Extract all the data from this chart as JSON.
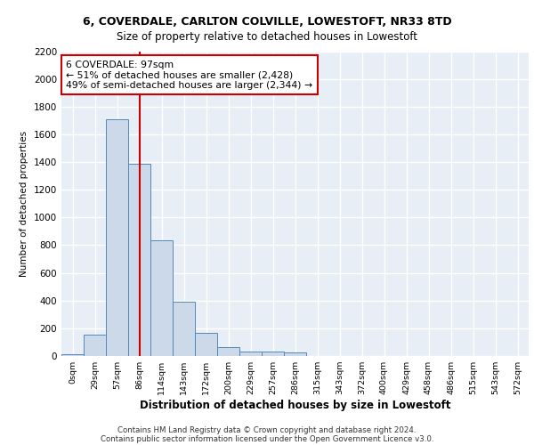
{
  "title1": "6, COVERDALE, CARLTON COLVILLE, LOWESTOFT, NR33 8TD",
  "title2": "Size of property relative to detached houses in Lowestoft",
  "xlabel": "Distribution of detached houses by size in Lowestoft",
  "ylabel": "Number of detached properties",
  "bin_labels": [
    "0sqm",
    "29sqm",
    "57sqm",
    "86sqm",
    "114sqm",
    "143sqm",
    "172sqm",
    "200sqm",
    "229sqm",
    "257sqm",
    "286sqm",
    "315sqm",
    "343sqm",
    "372sqm",
    "400sqm",
    "429sqm",
    "458sqm",
    "486sqm",
    "515sqm",
    "543sqm",
    "572sqm"
  ],
  "bar_values": [
    15,
    155,
    1710,
    1390,
    835,
    390,
    165,
    65,
    35,
    30,
    25,
    0,
    0,
    0,
    0,
    0,
    0,
    0,
    0,
    0,
    0
  ],
  "bar_color": "#ccd9e8",
  "bar_edge_color": "#5588bb",
  "vline_x": 3.0,
  "vline_color": "#cc0000",
  "annotation_text": "6 COVERDALE: 97sqm\n← 51% of detached houses are smaller (2,428)\n49% of semi-detached houses are larger (2,344) →",
  "annotation_box_color": "#ffffff",
  "annotation_box_edge": "#cc0000",
  "ylim": [
    0,
    2200
  ],
  "yticks": [
    0,
    200,
    400,
    600,
    800,
    1000,
    1200,
    1400,
    1600,
    1800,
    2000,
    2200
  ],
  "background_color": "#e8eef5",
  "grid_color": "#ffffff",
  "footer1": "Contains HM Land Registry data © Crown copyright and database right 2024.",
  "footer2": "Contains public sector information licensed under the Open Government Licence v3.0."
}
